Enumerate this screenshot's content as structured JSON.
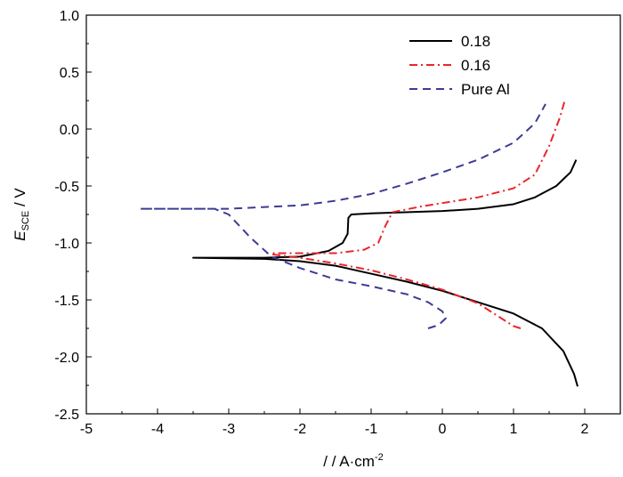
{
  "chart_data": {
    "type": "line",
    "title": "",
    "xlabel": "/ / A·cm",
    "xlabel_sup": "-2",
    "ylabel": "E",
    "ylabel_sub": "SCE",
    "ylabel_unit": " / V",
    "xlim": [
      -5,
      2.5
    ],
    "ylim": [
      -2.5,
      1.0
    ],
    "xticks": [
      "-5",
      "-4",
      "-3",
      "-2",
      "-1",
      "0",
      "1",
      "2"
    ],
    "yticks": [
      "-2.5",
      "-2.0",
      "-1.5",
      "-1.0",
      "-0.5",
      "0.0",
      "0.5",
      "1.0"
    ],
    "grid": false,
    "legend_position": "top-right",
    "series": [
      {
        "name": "0.18",
        "color": "#000000",
        "style": "solid",
        "points": [
          [
            1.9,
            -2.26
          ],
          [
            1.85,
            -2.15
          ],
          [
            1.7,
            -1.95
          ],
          [
            1.4,
            -1.75
          ],
          [
            1.0,
            -1.62
          ],
          [
            0.5,
            -1.52
          ],
          [
            0,
            -1.42
          ],
          [
            -0.5,
            -1.34
          ],
          [
            -1,
            -1.27
          ],
          [
            -1.5,
            -1.2
          ],
          [
            -2,
            -1.16
          ],
          [
            -2.5,
            -1.14
          ],
          [
            -3.5,
            -1.13
          ],
          [
            -2.5,
            -1.13
          ],
          [
            -2,
            -1.12
          ],
          [
            -1.6,
            -1.07
          ],
          [
            -1.4,
            -1.0
          ],
          [
            -1.33,
            -0.92
          ],
          [
            -1.32,
            -0.78
          ],
          [
            -1.28,
            -0.75
          ],
          [
            -1,
            -0.74
          ],
          [
            0,
            -0.72
          ],
          [
            0.5,
            -0.7
          ],
          [
            1,
            -0.66
          ],
          [
            1.3,
            -0.6
          ],
          [
            1.6,
            -0.5
          ],
          [
            1.8,
            -0.38
          ],
          [
            1.88,
            -0.27
          ]
        ]
      },
      {
        "name": "0.16",
        "color": "#e8262b",
        "style": "dashdot",
        "points": [
          [
            1.1,
            -1.75
          ],
          [
            1.0,
            -1.73
          ],
          [
            0.8,
            -1.65
          ],
          [
            0.5,
            -1.53
          ],
          [
            0,
            -1.41
          ],
          [
            -0.5,
            -1.32
          ],
          [
            -1,
            -1.24
          ],
          [
            -1.5,
            -1.18
          ],
          [
            -2,
            -1.13
          ],
          [
            -2.4,
            -1.1
          ],
          [
            -2.4,
            -1.09
          ],
          [
            -1.5,
            -1.09
          ],
          [
            -1.1,
            -1.06
          ],
          [
            -0.9,
            -1.0
          ],
          [
            -0.8,
            -0.85
          ],
          [
            -0.7,
            -0.73
          ],
          [
            -0.3,
            -0.68
          ],
          [
            0,
            -0.65
          ],
          [
            0.5,
            -0.6
          ],
          [
            1,
            -0.52
          ],
          [
            1.3,
            -0.4
          ],
          [
            1.5,
            -0.15
          ],
          [
            1.65,
            0.1
          ],
          [
            1.72,
            0.25
          ]
        ]
      },
      {
        "name": "Pure Al",
        "color": "#3d3b94",
        "style": "dashed",
        "points": [
          [
            -0.2,
            -1.75
          ],
          [
            -0.05,
            -1.72
          ],
          [
            0.05,
            -1.66
          ],
          [
            0,
            -1.6
          ],
          [
            -0.2,
            -1.52
          ],
          [
            -0.5,
            -1.45
          ],
          [
            -1,
            -1.38
          ],
          [
            -1.5,
            -1.32
          ],
          [
            -2,
            -1.22
          ],
          [
            -2.4,
            -1.12
          ],
          [
            -2.7,
            -0.95
          ],
          [
            -3,
            -0.75
          ],
          [
            -3.2,
            -0.7
          ],
          [
            -4.25,
            -0.7
          ],
          [
            -3,
            -0.7
          ],
          [
            -2,
            -0.67
          ],
          [
            -1.5,
            -0.63
          ],
          [
            -1,
            -0.57
          ],
          [
            -0.5,
            -0.48
          ],
          [
            0,
            -0.38
          ],
          [
            0.5,
            -0.27
          ],
          [
            1,
            -0.12
          ],
          [
            1.3,
            0.05
          ],
          [
            1.45,
            0.22
          ]
        ]
      }
    ]
  }
}
